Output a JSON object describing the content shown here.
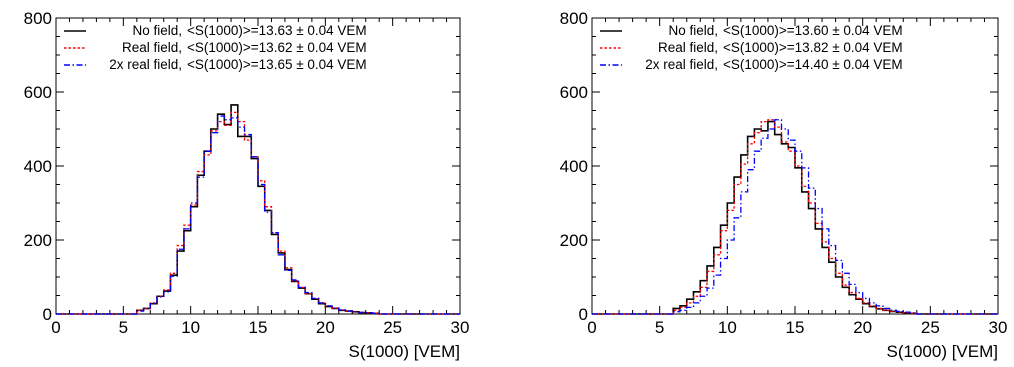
{
  "chart_data": [
    {
      "type": "step-histogram",
      "title": "",
      "xlabel": "S(1000) [VEM]",
      "ylabel": "",
      "xlim": [
        0,
        30
      ],
      "ylim": [
        0,
        800
      ],
      "xticks": [
        0,
        5,
        10,
        15,
        20,
        25,
        30
      ],
      "yticks": [
        0,
        200,
        400,
        600,
        800
      ],
      "grid": false,
      "legend_position": "top-left",
      "bin_width": 0.5,
      "series": [
        {
          "name": "No field,",
          "stat": "<S(1000)>=13.63 ± 0.04 VEM",
          "style": "solid",
          "color": "#000000",
          "x_start": 6.0,
          "values": [
            10,
            15,
            28,
            48,
            62,
            105,
            170,
            225,
            290,
            375,
            440,
            500,
            540,
            512,
            565,
            480,
            480,
            420,
            345,
            280,
            215,
            165,
            120,
            88,
            70,
            55,
            40,
            28,
            20,
            15,
            10,
            8,
            6,
            4,
            3,
            2
          ]
        },
        {
          "name": "Real field,",
          "stat": "<S(1000)>=13.62 ± 0.04 VEM",
          "style": "dotted",
          "color": "#ff0000",
          "x_start": 6.0,
          "values": [
            10,
            15,
            30,
            48,
            65,
            110,
            185,
            240,
            295,
            385,
            430,
            495,
            520,
            510,
            545,
            520,
            470,
            425,
            360,
            290,
            220,
            170,
            125,
            90,
            72,
            55,
            42,
            30,
            22,
            16,
            11,
            8,
            6,
            4,
            3,
            2
          ]
        },
        {
          "name": "2x real field,",
          "stat": "<S(1000)>=13.65 ± 0.04 VEM",
          "style": "dash-dot",
          "color": "#0000ff",
          "x_start": 6.0,
          "values": [
            8,
            14,
            28,
            46,
            60,
            102,
            175,
            230,
            300,
            370,
            440,
            490,
            535,
            525,
            530,
            505,
            485,
            425,
            350,
            275,
            220,
            160,
            118,
            92,
            72,
            58,
            42,
            30,
            22,
            16,
            11,
            8,
            6,
            4,
            3,
            2
          ]
        }
      ]
    },
    {
      "type": "step-histogram",
      "title": "",
      "xlabel": "S(1000) [VEM]",
      "ylabel": "",
      "xlim": [
        0,
        30
      ],
      "ylim": [
        0,
        800
      ],
      "xticks": [
        0,
        5,
        10,
        15,
        20,
        25,
        30
      ],
      "yticks": [
        0,
        200,
        400,
        600,
        800
      ],
      "grid": false,
      "legend_position": "top-left",
      "bin_width": 0.5,
      "series": [
        {
          "name": "No field,",
          "stat": "<S(1000)>=13.60 ± 0.04 VEM",
          "style": "solid",
          "color": "#000000",
          "x_start": 6.0,
          "values": [
            15,
            22,
            40,
            60,
            90,
            130,
            180,
            240,
            300,
            370,
            430,
            480,
            500,
            495,
            520,
            485,
            460,
            450,
            395,
            330,
            285,
            230,
            180,
            140,
            100,
            72,
            52,
            40,
            28,
            20,
            14,
            10,
            7,
            5,
            3,
            2
          ]
        },
        {
          "name": "Real field,",
          "stat": "<S(1000)>=13.82 ± 0.04 VEM",
          "style": "dotted",
          "color": "#ff0000",
          "x_start": 6.0,
          "values": [
            10,
            18,
            30,
            48,
            72,
            115,
            160,
            225,
            280,
            350,
            405,
            460,
            490,
            520,
            525,
            505,
            465,
            440,
            400,
            345,
            300,
            245,
            195,
            150,
            110,
            78,
            58,
            42,
            30,
            22,
            15,
            10,
            7,
            5,
            3,
            2
          ]
        },
        {
          "name": "2x real field,",
          "stat": "<S(1000)>=14.40 ± 0.04 VEM",
          "style": "dash-dot",
          "color": "#0000ff",
          "x_start": 6.0,
          "values": [
            6,
            10,
            18,
            30,
            48,
            70,
            105,
            150,
            200,
            260,
            330,
            390,
            440,
            475,
            500,
            525,
            500,
            470,
            440,
            395,
            340,
            285,
            230,
            185,
            145,
            110,
            80,
            58,
            42,
            30,
            22,
            15,
            10,
            7,
            5,
            3
          ]
        }
      ]
    }
  ]
}
